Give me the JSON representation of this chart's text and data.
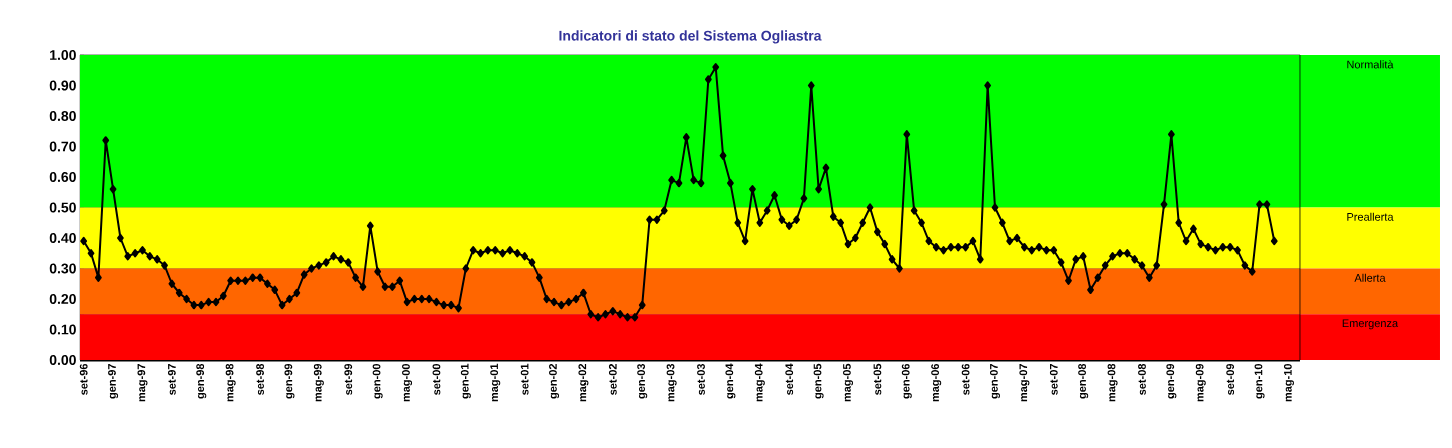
{
  "chart_data": {
    "type": "line",
    "title": "Indicatori di stato del Sistema Ogliastra",
    "categories": [
      "set-96",
      null,
      null,
      null,
      "gen-97",
      null,
      null,
      null,
      "mag-97",
      null,
      null,
      null,
      "set-97",
      null,
      null,
      null,
      "gen-98",
      null,
      null,
      null,
      "mag-98",
      null,
      null,
      null,
      "set-98",
      null,
      null,
      null,
      "gen-99",
      null,
      null,
      null,
      "mag-99",
      null,
      null,
      null,
      "set-99",
      null,
      null,
      null,
      "gen-00",
      null,
      null,
      null,
      "mag-00",
      null,
      null,
      null,
      "set-00",
      null,
      null,
      null,
      "gen-01",
      null,
      null,
      null,
      "mag-01",
      null,
      null,
      null,
      "set-01",
      null,
      null,
      null,
      "gen-02",
      null,
      null,
      null,
      "mag-02",
      null,
      null,
      null,
      "set-02",
      null,
      null,
      null,
      "gen-03",
      null,
      null,
      null,
      "mag-03",
      null,
      null,
      null,
      "set-03",
      null,
      null,
      null,
      "gen-04",
      null,
      null,
      null,
      "mag-04",
      null,
      null,
      null,
      "set-04",
      null,
      null,
      null,
      "gen-05",
      null,
      null,
      null,
      "mag-05",
      null,
      null,
      null,
      "set-05",
      null,
      null,
      null,
      "gen-06",
      null,
      null,
      null,
      "mag-06",
      null,
      null,
      null,
      "set-06",
      null,
      null,
      null,
      "gen-07",
      null,
      null,
      null,
      "mag-07",
      null,
      null,
      null,
      "set-07",
      null,
      null,
      null,
      "gen-08",
      null,
      null,
      null,
      "mag-08",
      null,
      null,
      null,
      "set-08",
      null,
      null,
      null,
      "gen-09",
      null,
      null,
      null,
      "mag-09",
      null,
      null,
      null,
      "set-09",
      null,
      null,
      null,
      "gen-10",
      null,
      null,
      null,
      "mag-10"
    ],
    "values": [
      0.39,
      0.35,
      0.27,
      0.72,
      0.56,
      0.4,
      0.34,
      0.35,
      0.36,
      0.34,
      0.33,
      0.31,
      0.25,
      0.22,
      0.2,
      0.18,
      0.18,
      0.19,
      0.19,
      0.21,
      0.26,
      0.26,
      0.26,
      0.27,
      0.27,
      0.25,
      0.23,
      0.18,
      0.2,
      0.22,
      0.28,
      0.3,
      0.31,
      0.32,
      0.34,
      0.33,
      0.32,
      0.27,
      0.24,
      0.44,
      0.29,
      0.24,
      0.24,
      0.26,
      0.19,
      0.2,
      0.2,
      0.2,
      0.19,
      0.18,
      0.18,
      0.17,
      0.3,
      0.36,
      0.35,
      0.36,
      0.36,
      0.35,
      0.36,
      0.35,
      0.34,
      0.32,
      0.27,
      0.2,
      0.19,
      0.18,
      0.19,
      0.2,
      0.22,
      0.15,
      0.14,
      0.15,
      0.16,
      0.15,
      0.14,
      0.14,
      0.18,
      0.46,
      0.46,
      0.49,
      0.59,
      0.58,
      0.73,
      0.59,
      0.58,
      0.92,
      0.96,
      0.67,
      0.58,
      0.45,
      0.39,
      0.56,
      0.45,
      0.49,
      0.54,
      0.46,
      0.44,
      0.46,
      0.53,
      0.9,
      0.56,
      0.63,
      0.47,
      0.45,
      0.38,
      0.4,
      0.45,
      0.5,
      0.42,
      0.38,
      0.33,
      0.3,
      0.74,
      0.49,
      0.45,
      0.39,
      0.37,
      0.36,
      0.37,
      0.37,
      0.37,
      0.39,
      0.33,
      0.9,
      0.5,
      0.45,
      0.39,
      0.4,
      0.37,
      0.36,
      0.37,
      0.36,
      0.36,
      0.32,
      0.26,
      0.33,
      0.34,
      0.23,
      0.27,
      0.31,
      0.34,
      0.35,
      0.35,
      0.33,
      0.31,
      0.27,
      0.31,
      0.51,
      0.74,
      0.45,
      0.39,
      0.43,
      0.38,
      0.37,
      0.36,
      0.37,
      0.37,
      0.36,
      0.31,
      0.29,
      0.51,
      0.51,
      0.39,
      null,
      null
    ],
    "color": "#000000",
    "marker": "diamond",
    "line_style": "solid",
    "ylim": [
      0,
      1
    ],
    "yticks": [
      {
        "value": 0,
        "label": "0.00"
      },
      {
        "value": 0.05,
        "label": null
      },
      {
        "value": 0.1,
        "label": "0.10"
      },
      {
        "value": 0.15,
        "label": null
      },
      {
        "value": 0.2,
        "label": "0.20"
      },
      {
        "value": 0.25,
        "label": null
      },
      {
        "value": 0.3,
        "label": "0.30"
      },
      {
        "value": 0.35,
        "label": null
      },
      {
        "value": 0.4,
        "label": "0.40"
      },
      {
        "value": 0.45,
        "label": null
      },
      {
        "value": 0.5,
        "label": "0.50"
      },
      {
        "value": 0.55,
        "label": null
      },
      {
        "value": 0.6,
        "label": "0.60"
      },
      {
        "value": 0.65,
        "label": null
      },
      {
        "value": 0.7,
        "label": "0.70"
      },
      {
        "value": 0.75,
        "label": null
      },
      {
        "value": 0.8,
        "label": "0.80"
      },
      {
        "value": 0.85,
        "label": null
      },
      {
        "value": 0.9,
        "label": "0.90"
      },
      {
        "value": 0.95,
        "label": null
      },
      {
        "value": 1,
        "label": "1.00"
      }
    ],
    "grid": "y",
    "bands": [
      {
        "axis": "y",
        "from": 0.5,
        "to": 1.0,
        "label": "Normalità",
        "color": "#00ff00"
      },
      {
        "axis": "y",
        "from": 0.3,
        "to": 0.5,
        "label": "Preallerta",
        "color": "#ffff00"
      },
      {
        "axis": "y",
        "from": 0.15,
        "to": 0.3,
        "label": "Allerta",
        "color": "#ff6600"
      },
      {
        "axis": "y",
        "from": 0.0,
        "to": 0.15,
        "label": "Emergenza",
        "color": "#ff0000"
      }
    ]
  }
}
